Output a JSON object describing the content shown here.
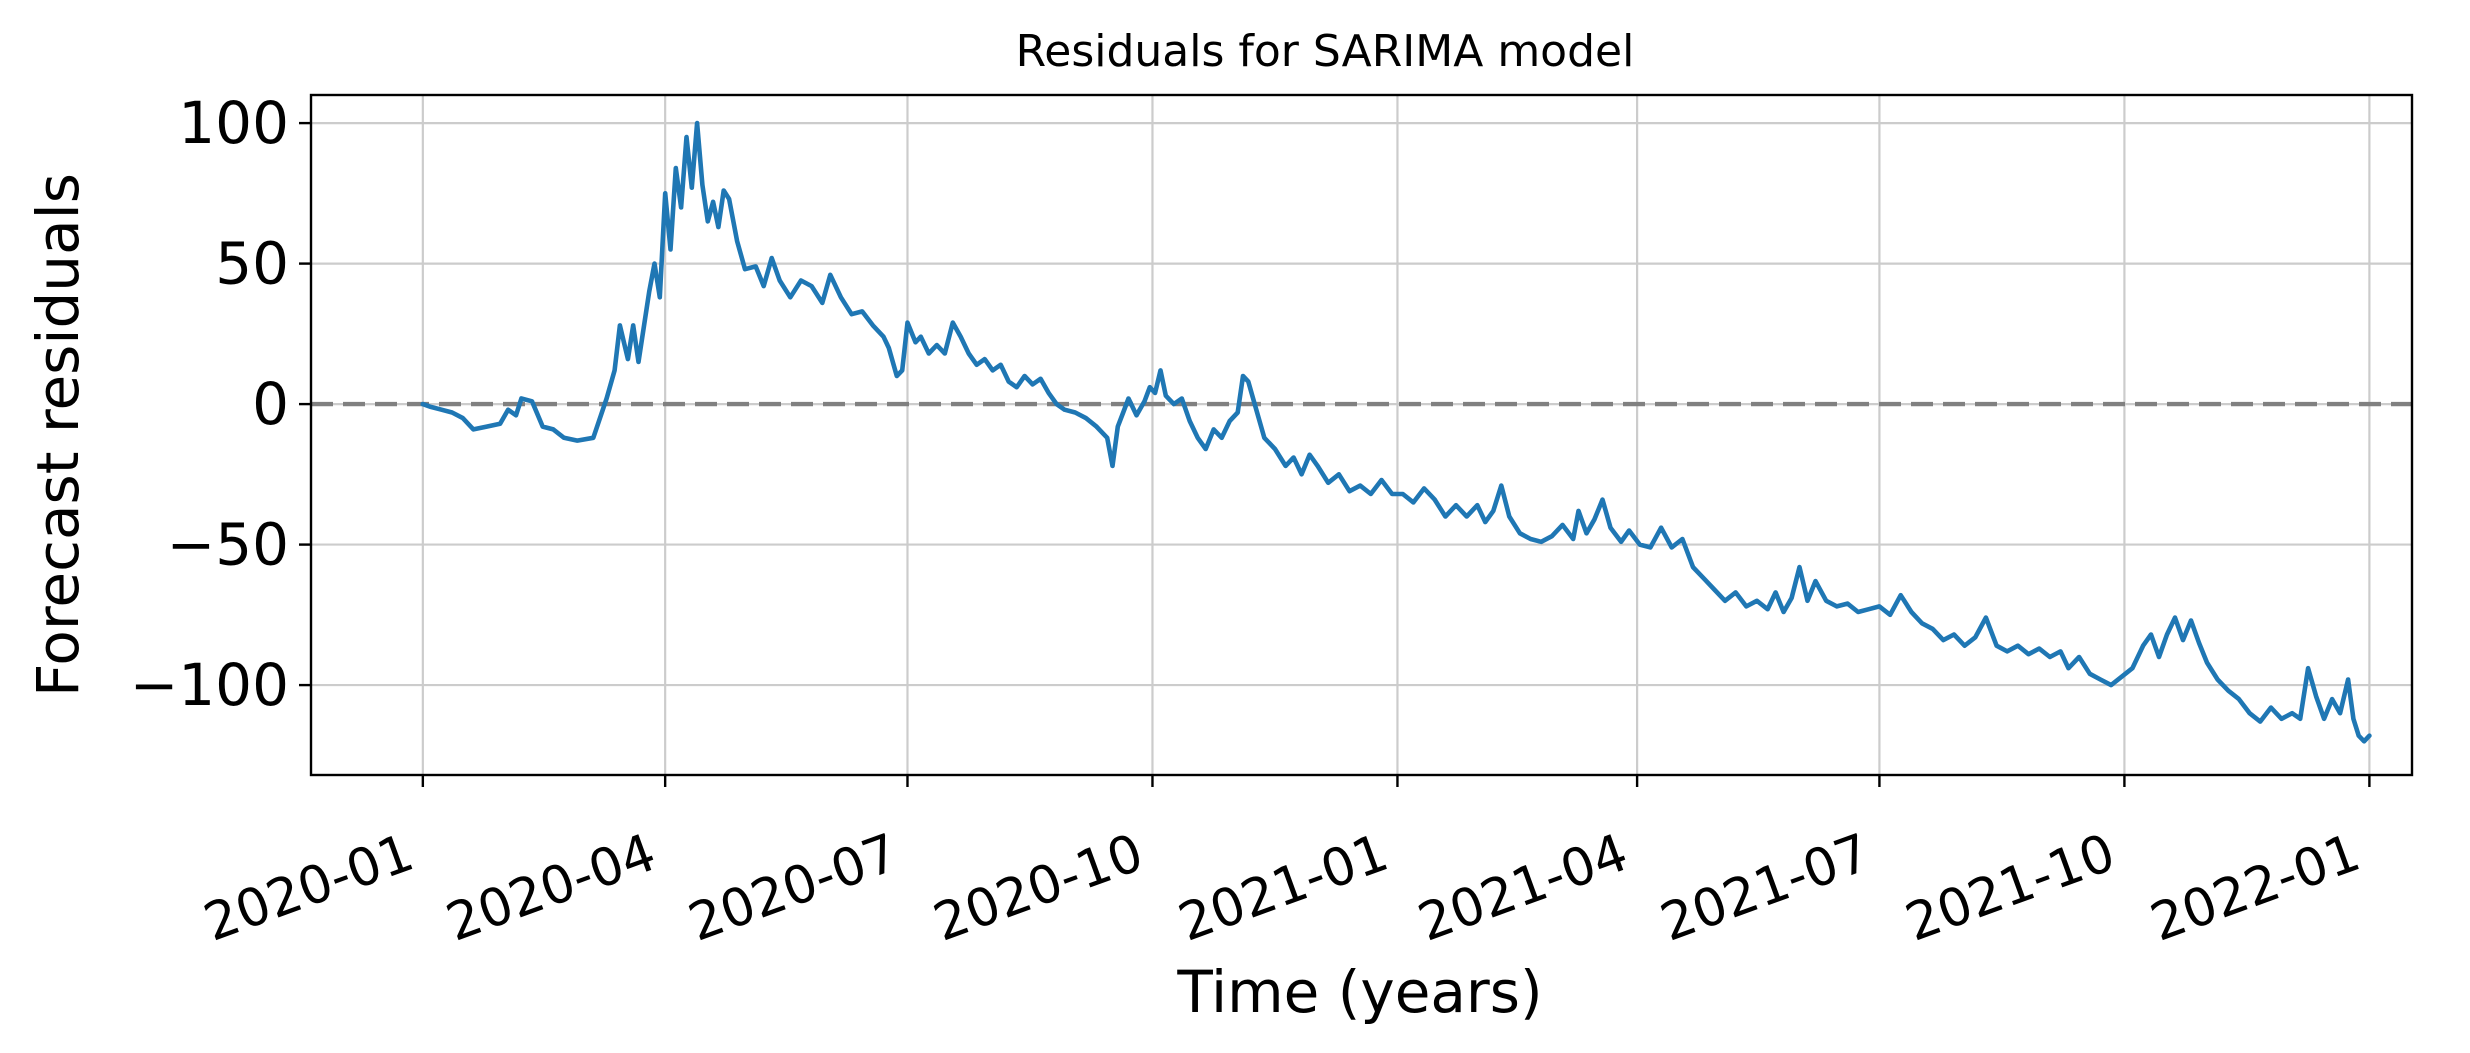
{
  "chart_data": {
    "type": "line",
    "title": "Residuals for SARIMA model",
    "xlabel": "Time (years)",
    "ylabel": "Forecast residuals",
    "xlim": [
      "2019-11-20",
      "2022-01-17"
    ],
    "ylim": [
      -132,
      110
    ],
    "x_ticks": [
      "2020-01",
      "2020-04",
      "2020-07",
      "2020-10",
      "2021-01",
      "2021-04",
      "2021-07",
      "2021-10",
      "2022-01"
    ],
    "y_ticks": [
      100,
      50,
      0,
      -50,
      -100
    ],
    "y_tick_labels": [
      "100",
      "50",
      "0",
      "−50",
      "−100"
    ],
    "grid": true,
    "legend": "none",
    "reference_line": {
      "y": 0,
      "style": "dashed",
      "color": "#808080"
    },
    "series": [
      {
        "color": "#1f77b4",
        "points": [
          [
            "2020-01-01",
            0
          ],
          [
            "2020-01-04",
            -1
          ],
          [
            "2020-01-08",
            -2
          ],
          [
            "2020-01-12",
            -3
          ],
          [
            "2020-01-16",
            -5
          ],
          [
            "2020-01-20",
            -9
          ],
          [
            "2020-01-25",
            -8
          ],
          [
            "2020-01-30",
            -7
          ],
          [
            "2020-02-02",
            -2
          ],
          [
            "2020-02-05",
            -4
          ],
          [
            "2020-02-07",
            2
          ],
          [
            "2020-02-11",
            1
          ],
          [
            "2020-02-15",
            -8
          ],
          [
            "2020-02-19",
            -9
          ],
          [
            "2020-02-23",
            -12
          ],
          [
            "2020-02-28",
            -13
          ],
          [
            "2020-03-05",
            -12
          ],
          [
            "2020-03-10",
            2
          ],
          [
            "2020-03-13",
            12
          ],
          [
            "2020-03-15",
            28
          ],
          [
            "2020-03-18",
            16
          ],
          [
            "2020-03-20",
            28
          ],
          [
            "2020-03-22",
            15
          ],
          [
            "2020-03-26",
            40
          ],
          [
            "2020-03-28",
            50
          ],
          [
            "2020-03-30",
            38
          ],
          [
            "2020-04-01",
            75
          ],
          [
            "2020-04-03",
            55
          ],
          [
            "2020-04-05",
            84
          ],
          [
            "2020-04-07",
            70
          ],
          [
            "2020-04-09",
            95
          ],
          [
            "2020-04-11",
            77
          ],
          [
            "2020-04-13",
            100
          ],
          [
            "2020-04-15",
            78
          ],
          [
            "2020-04-17",
            65
          ],
          [
            "2020-04-19",
            72
          ],
          [
            "2020-04-21",
            63
          ],
          [
            "2020-04-23",
            76
          ],
          [
            "2020-04-25",
            73
          ],
          [
            "2020-04-28",
            58
          ],
          [
            "2020-05-01",
            48
          ],
          [
            "2020-05-05",
            49
          ],
          [
            "2020-05-08",
            42
          ],
          [
            "2020-05-11",
            52
          ],
          [
            "2020-05-14",
            44
          ],
          [
            "2020-05-18",
            38
          ],
          [
            "2020-05-22",
            44
          ],
          [
            "2020-05-26",
            42
          ],
          [
            "2020-05-30",
            36
          ],
          [
            "2020-06-02",
            46
          ],
          [
            "2020-06-06",
            38
          ],
          [
            "2020-06-10",
            32
          ],
          [
            "2020-06-14",
            33
          ],
          [
            "2020-06-18",
            28
          ],
          [
            "2020-06-22",
            24
          ],
          [
            "2020-06-24",
            20
          ],
          [
            "2020-06-27",
            10
          ],
          [
            "2020-06-29",
            12
          ],
          [
            "2020-07-01",
            29
          ],
          [
            "2020-07-04",
            22
          ],
          [
            "2020-07-06",
            24
          ],
          [
            "2020-07-09",
            18
          ],
          [
            "2020-07-12",
            21
          ],
          [
            "2020-07-15",
            18
          ],
          [
            "2020-07-18",
            29
          ],
          [
            "2020-07-21",
            24
          ],
          [
            "2020-07-24",
            18
          ],
          [
            "2020-07-27",
            14
          ],
          [
            "2020-07-30",
            16
          ],
          [
            "2020-08-02",
            12
          ],
          [
            "2020-08-05",
            14
          ],
          [
            "2020-08-08",
            8
          ],
          [
            "2020-08-11",
            6
          ],
          [
            "2020-08-14",
            10
          ],
          [
            "2020-08-17",
            7
          ],
          [
            "2020-08-20",
            9
          ],
          [
            "2020-08-23",
            4
          ],
          [
            "2020-08-26",
            0
          ],
          [
            "2020-08-29",
            -2
          ],
          [
            "2020-09-02",
            -3
          ],
          [
            "2020-09-06",
            -5
          ],
          [
            "2020-09-10",
            -8
          ],
          [
            "2020-09-14",
            -12
          ],
          [
            "2020-09-16",
            -22
          ],
          [
            "2020-09-18",
            -8
          ],
          [
            "2020-09-20",
            -3
          ],
          [
            "2020-09-22",
            2
          ],
          [
            "2020-09-25",
            -4
          ],
          [
            "2020-09-28",
            1
          ],
          [
            "2020-09-30",
            6
          ],
          [
            "2020-10-02",
            4
          ],
          [
            "2020-10-04",
            12
          ],
          [
            "2020-10-06",
            3
          ],
          [
            "2020-10-09",
            0
          ],
          [
            "2020-10-12",
            2
          ],
          [
            "2020-10-15",
            -6
          ],
          [
            "2020-10-18",
            -12
          ],
          [
            "2020-10-21",
            -16
          ],
          [
            "2020-10-24",
            -9
          ],
          [
            "2020-10-27",
            -12
          ],
          [
            "2020-10-30",
            -6
          ],
          [
            "2020-11-02",
            -3
          ],
          [
            "2020-11-04",
            10
          ],
          [
            "2020-11-06",
            8
          ],
          [
            "2020-11-09",
            -2
          ],
          [
            "2020-11-12",
            -12
          ],
          [
            "2020-11-16",
            -16
          ],
          [
            "2020-11-20",
            -22
          ],
          [
            "2020-11-23",
            -19
          ],
          [
            "2020-11-26",
            -25
          ],
          [
            "2020-11-29",
            -18
          ],
          [
            "2020-12-02",
            -22
          ],
          [
            "2020-12-06",
            -28
          ],
          [
            "2020-12-10",
            -25
          ],
          [
            "2020-12-14",
            -31
          ],
          [
            "2020-12-18",
            -29
          ],
          [
            "2020-12-22",
            -32
          ],
          [
            "2020-12-26",
            -27
          ],
          [
            "2020-12-30",
            -32
          ],
          [
            "2021-01-03",
            -32
          ],
          [
            "2021-01-07",
            -35
          ],
          [
            "2021-01-11",
            -30
          ],
          [
            "2021-01-15",
            -34
          ],
          [
            "2021-01-19",
            -40
          ],
          [
            "2021-01-23",
            -36
          ],
          [
            "2021-01-27",
            -40
          ],
          [
            "2021-01-31",
            -36
          ],
          [
            "2021-02-03",
            -42
          ],
          [
            "2021-02-06",
            -38
          ],
          [
            "2021-02-09",
            -29
          ],
          [
            "2021-02-12",
            -40
          ],
          [
            "2021-02-16",
            -46
          ],
          [
            "2021-02-20",
            -48
          ],
          [
            "2021-02-24",
            -49
          ],
          [
            "2021-02-28",
            -47
          ],
          [
            "2021-03-04",
            -43
          ],
          [
            "2021-03-08",
            -48
          ],
          [
            "2021-03-10",
            -38
          ],
          [
            "2021-03-13",
            -46
          ],
          [
            "2021-03-16",
            -41
          ],
          [
            "2021-03-19",
            -34
          ],
          [
            "2021-03-22",
            -44
          ],
          [
            "2021-03-26",
            -49
          ],
          [
            "2021-03-29",
            -45
          ],
          [
            "2021-04-02",
            -50
          ],
          [
            "2021-04-06",
            -51
          ],
          [
            "2021-04-10",
            -44
          ],
          [
            "2021-04-14",
            -51
          ],
          [
            "2021-04-18",
            -48
          ],
          [
            "2021-04-22",
            -58
          ],
          [
            "2021-04-26",
            -62
          ],
          [
            "2021-04-30",
            -66
          ],
          [
            "2021-05-04",
            -70
          ],
          [
            "2021-05-08",
            -67
          ],
          [
            "2021-05-12",
            -72
          ],
          [
            "2021-05-16",
            -70
          ],
          [
            "2021-05-20",
            -73
          ],
          [
            "2021-05-23",
            -67
          ],
          [
            "2021-05-26",
            -74
          ],
          [
            "2021-05-29",
            -69
          ],
          [
            "2021-06-01",
            -58
          ],
          [
            "2021-06-04",
            -70
          ],
          [
            "2021-06-07",
            -63
          ],
          [
            "2021-06-11",
            -70
          ],
          [
            "2021-06-15",
            -72
          ],
          [
            "2021-06-19",
            -71
          ],
          [
            "2021-06-23",
            -74
          ],
          [
            "2021-06-27",
            -73
          ],
          [
            "2021-07-01",
            -72
          ],
          [
            "2021-07-05",
            -75
          ],
          [
            "2021-07-09",
            -68
          ],
          [
            "2021-07-13",
            -74
          ],
          [
            "2021-07-17",
            -78
          ],
          [
            "2021-07-21",
            -80
          ],
          [
            "2021-07-25",
            -84
          ],
          [
            "2021-07-29",
            -82
          ],
          [
            "2021-08-02",
            -86
          ],
          [
            "2021-08-06",
            -83
          ],
          [
            "2021-08-10",
            -76
          ],
          [
            "2021-08-14",
            -86
          ],
          [
            "2021-08-18",
            -88
          ],
          [
            "2021-08-22",
            -86
          ],
          [
            "2021-08-26",
            -89
          ],
          [
            "2021-08-30",
            -87
          ],
          [
            "2021-09-03",
            -90
          ],
          [
            "2021-09-07",
            -88
          ],
          [
            "2021-09-10",
            -94
          ],
          [
            "2021-09-14",
            -90
          ],
          [
            "2021-09-18",
            -96
          ],
          [
            "2021-09-22",
            -98
          ],
          [
            "2021-09-26",
            -100
          ],
          [
            "2021-09-30",
            -97
          ],
          [
            "2021-10-04",
            -94
          ],
          [
            "2021-10-08",
            -86
          ],
          [
            "2021-10-11",
            -82
          ],
          [
            "2021-10-14",
            -90
          ],
          [
            "2021-10-17",
            -82
          ],
          [
            "2021-10-20",
            -76
          ],
          [
            "2021-10-23",
            -84
          ],
          [
            "2021-10-26",
            -77
          ],
          [
            "2021-10-29",
            -85
          ],
          [
            "2021-11-01",
            -92
          ],
          [
            "2021-11-05",
            -98
          ],
          [
            "2021-11-09",
            -102
          ],
          [
            "2021-11-13",
            -105
          ],
          [
            "2021-11-17",
            -110
          ],
          [
            "2021-11-21",
            -113
          ],
          [
            "2021-11-25",
            -108
          ],
          [
            "2021-11-29",
            -112
          ],
          [
            "2021-12-03",
            -110
          ],
          [
            "2021-12-06",
            -112
          ],
          [
            "2021-12-09",
            -94
          ],
          [
            "2021-12-12",
            -104
          ],
          [
            "2021-12-15",
            -112
          ],
          [
            "2021-12-18",
            -105
          ],
          [
            "2021-12-21",
            -110
          ],
          [
            "2021-12-24",
            -98
          ],
          [
            "2021-12-26",
            -112
          ],
          [
            "2021-12-28",
            -118
          ],
          [
            "2021-12-30",
            -120
          ],
          [
            "2022-01-01",
            -118
          ]
        ]
      }
    ]
  }
}
